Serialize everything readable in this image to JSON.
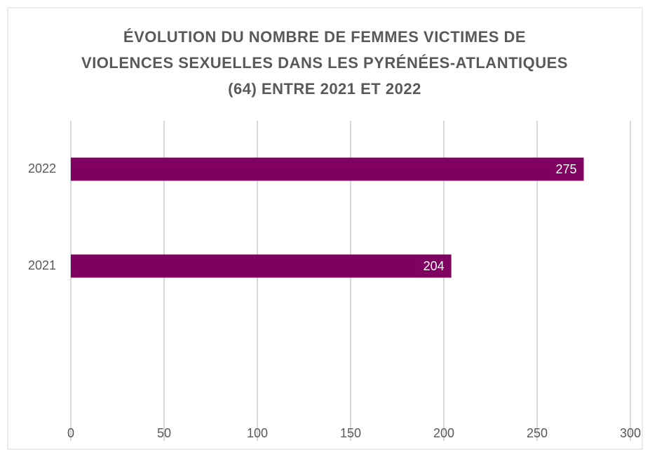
{
  "chart_data": {
    "type": "bar",
    "orientation": "horizontal",
    "title": "ÉVOLUTION DU NOMBRE DE FEMMES VICTIMES DE VIOLENCES SEXUELLES DANS LES PYRÉNÉES-ATLANTIQUES (64) ENTRE 2021 ET 2022",
    "categories": [
      "2022",
      "2021"
    ],
    "values": [
      275,
      204
    ],
    "color": "#7f0060",
    "xlim": [
      0,
      300
    ],
    "xticks": [
      0,
      50,
      100,
      150,
      200,
      250,
      300
    ],
    "grid": true
  }
}
